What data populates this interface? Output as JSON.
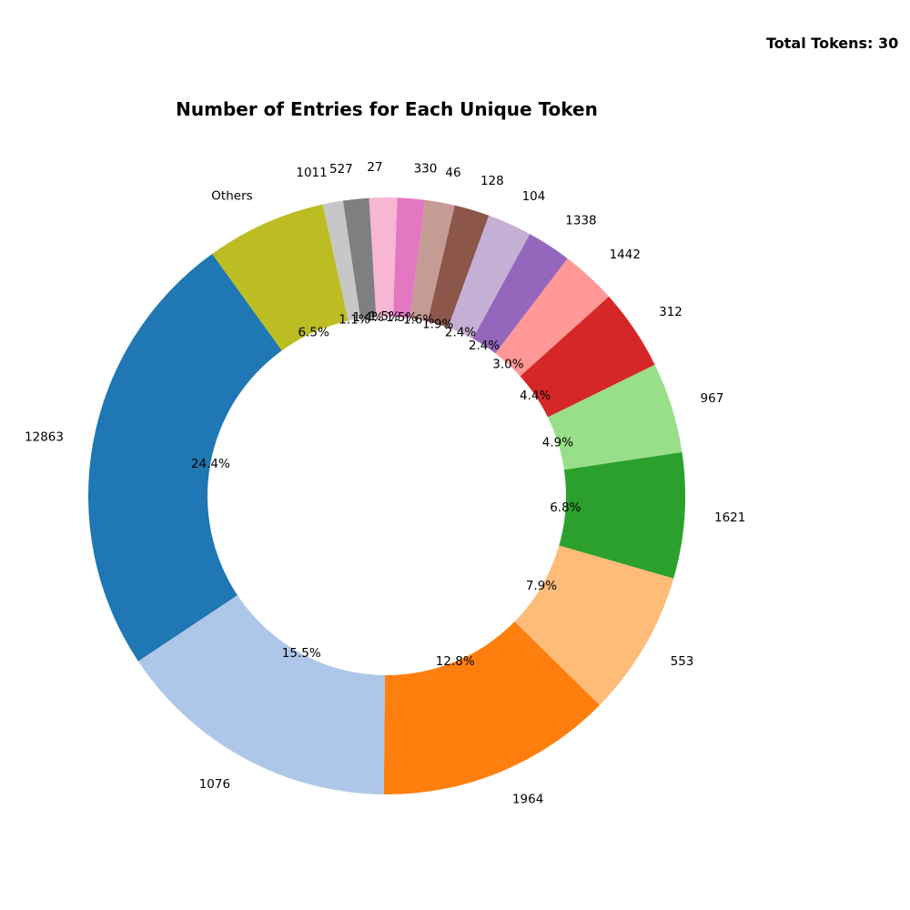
{
  "chart_data": {
    "type": "pie",
    "donut": true,
    "title": "Number of Entries for Each Unique Token",
    "annotation": "Total Tokens: 30",
    "start_angle_deg": 125.8,
    "direction": "counterclockwise",
    "slices": [
      {
        "label": "12863",
        "percent": 24.4,
        "pct_text": "24.4%",
        "color": "#1f77b4"
      },
      {
        "label": "1076",
        "percent": 15.5,
        "pct_text": "15.5%",
        "color": "#aec7e8"
      },
      {
        "label": "1964",
        "percent": 12.8,
        "pct_text": "12.8%",
        "color": "#ff7f0e"
      },
      {
        "label": "553",
        "percent": 7.9,
        "pct_text": "7.9%",
        "color": "#ffbb78"
      },
      {
        "label": "1621",
        "percent": 6.8,
        "pct_text": "6.8%",
        "color": "#2ca02c"
      },
      {
        "label": "967",
        "percent": 4.9,
        "pct_text": "4.9%",
        "color": "#98df8a"
      },
      {
        "label": "312",
        "percent": 4.4,
        "pct_text": "4.4%",
        "color": "#d62728"
      },
      {
        "label": "1442",
        "percent": 3.0,
        "pct_text": "3.0%",
        "color": "#ff9896"
      },
      {
        "label": "1338",
        "percent": 2.4,
        "pct_text": "2.4%",
        "color": "#9467bd"
      },
      {
        "label": "104",
        "percent": 2.4,
        "pct_text": "2.4%",
        "color": "#c5b0d5"
      },
      {
        "label": "128",
        "percent": 1.9,
        "pct_text": "1.9%",
        "color": "#8c564b"
      },
      {
        "label": "46",
        "percent": 1.6,
        "pct_text": "1.6%",
        "color": "#c49c94"
      },
      {
        "label": "330",
        "percent": 1.5,
        "pct_text": "1.5%",
        "color": "#e377c2"
      },
      {
        "label": "27",
        "percent": 1.5,
        "pct_text": "1.5%",
        "color": "#f7b6d2"
      },
      {
        "label": "527",
        "percent": 1.4,
        "pct_text": "1.4%",
        "color": "#7f7f7f"
      },
      {
        "label": "1011",
        "percent": 1.1,
        "pct_text": "1.1%",
        "color": "#c7c7c7"
      },
      {
        "label": "Others",
        "percent": 6.5,
        "pct_text": "6.5%",
        "color": "#bcbd22"
      }
    ]
  }
}
